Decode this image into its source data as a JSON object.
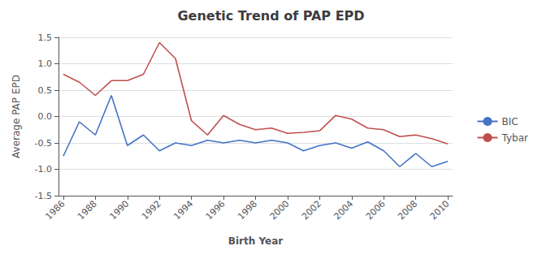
{
  "chart_data": {
    "type": "line",
    "title": "Genetic Trend of PAP EPD",
    "xlabel": "Birth Year",
    "ylabel": "Average PAP EPD",
    "x": [
      1986,
      1987,
      1988,
      1989,
      1990,
      1991,
      1992,
      1993,
      1994,
      1995,
      1996,
      1997,
      1998,
      1999,
      2000,
      2001,
      2002,
      2003,
      2004,
      2005,
      2006,
      2007,
      2008,
      2009,
      2010
    ],
    "series": [
      {
        "name": "BIC",
        "color": "#4472C4",
        "values": [
          -0.75,
          -0.1,
          -0.35,
          0.4,
          -0.55,
          -0.35,
          -0.65,
          -0.5,
          -0.55,
          -0.45,
          -0.5,
          -0.45,
          -0.5,
          -0.45,
          -0.5,
          -0.65,
          -0.55,
          -0.5,
          -0.6,
          -0.48,
          -0.65,
          -0.95,
          -0.7,
          -0.95,
          -0.85
        ]
      },
      {
        "name": "Tybar",
        "color": "#C0504D",
        "values": [
          0.8,
          0.65,
          0.4,
          0.68,
          0.68,
          0.8,
          1.4,
          1.1,
          -0.08,
          -0.35,
          0.02,
          -0.15,
          -0.25,
          -0.22,
          -0.32,
          -0.3,
          -0.27,
          0.02,
          -0.05,
          -0.22,
          -0.25,
          -0.38,
          -0.35,
          -0.42,
          -0.52
        ]
      }
    ],
    "xlim": [
      1985.7,
      2010.3
    ],
    "xticks": [
      1986,
      1988,
      1990,
      1992,
      1994,
      1996,
      1998,
      2000,
      2002,
      2004,
      2006,
      2008,
      2010
    ],
    "ylim": [
      -1.5,
      1.5
    ],
    "yticks": [
      -1.5,
      {
        "value": -1,
        "label": "-1.0"
      },
      -0.5,
      {
        "value": 0,
        "label": "0.0"
      },
      0.5,
      {
        "value": 1,
        "label": "1.0"
      },
      1.5
    ],
    "grid": true,
    "legend": "right"
  }
}
